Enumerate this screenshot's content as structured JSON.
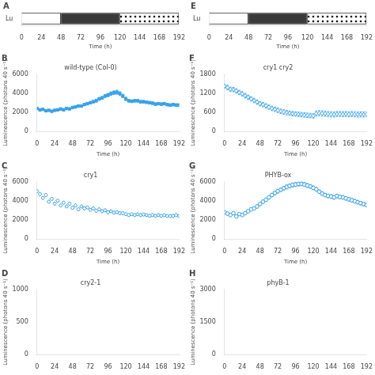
{
  "chart_data": [
    {
      "type": "bar",
      "title": "A",
      "orientation": "horizontal",
      "stacked": true,
      "grid": false,
      "categories": [
        "Lu"
      ],
      "xlabel": "Time (h)",
      "series": [
        {
          "values": [
            48
          ],
          "color": "#ffffff"
        },
        {
          "values": [
            72
          ],
          "color": "#3a3a3a"
        },
        {
          "values": [
            72
          ],
          "color": "#ffffff",
          "marker": "dots"
        }
      ],
      "xlim": [
        0,
        192
      ],
      "xticks": [
        0,
        24,
        48,
        72,
        96,
        120,
        144,
        168,
        192
      ]
    },
    {
      "type": "bar",
      "title": "E",
      "orientation": "horizontal",
      "stacked": true,
      "grid": false,
      "categories": [
        "Lu"
      ],
      "xlabel": "Time (h)",
      "series": [
        {
          "values": [
            48
          ],
          "color": "#ffffff"
        },
        {
          "values": [
            72
          ],
          "color": "#3a3a3a"
        },
        {
          "values": [
            72
          ],
          "color": "#ffffff",
          "marker": "dots"
        }
      ],
      "xlim": [
        0,
        192
      ],
      "xticks": [
        0,
        24,
        48,
        72,
        96,
        120,
        144,
        168,
        192
      ]
    },
    {
      "type": "scatter",
      "title": "B",
      "subtitle": "wild-type (Col-0)",
      "grid": false,
      "xlabel": "Time (h)",
      "ylabel": "Luminescence (photons 40 s⁻¹)",
      "x": [
        0,
        4,
        8,
        12,
        16,
        20,
        24,
        28,
        32,
        36,
        40,
        44,
        48,
        52,
        56,
        60,
        64,
        68,
        72,
        76,
        80,
        84,
        88,
        92,
        96,
        100,
        104,
        108,
        112,
        116,
        120,
        124,
        128,
        132,
        136,
        140,
        144,
        148,
        152,
        156,
        160,
        164,
        168,
        172,
        176,
        180,
        184,
        188,
        192
      ],
      "series": [
        {
          "marker": "square",
          "values": [
            2400,
            2250,
            2300,
            2150,
            2200,
            2100,
            2200,
            2250,
            2350,
            2250,
            2400,
            2350,
            2500,
            2550,
            2650,
            2650,
            2800,
            2900,
            3000,
            3100,
            3200,
            3400,
            3500,
            3700,
            3800,
            3950,
            4050,
            4100,
            3950,
            3700,
            3400,
            3200,
            3150,
            3200,
            3200,
            3100,
            3100,
            3050,
            3000,
            2950,
            2850,
            2900,
            2850,
            2900,
            2800,
            2750,
            2800,
            2750,
            2750
          ],
          "yerr": [
            80,
            80,
            80,
            80,
            80,
            80,
            80,
            80,
            80,
            80,
            80,
            80,
            80,
            80,
            80,
            80,
            100,
            120,
            120,
            130,
            140,
            150,
            160,
            170,
            180,
            190,
            200,
            220,
            200,
            190,
            180,
            150,
            140,
            140,
            140,
            140,
            140,
            130,
            130,
            130,
            130,
            130,
            130,
            130,
            130,
            130,
            130,
            130,
            130
          ]
        }
      ],
      "xlim": [
        0,
        192
      ],
      "xticks": [
        0,
        24,
        48,
        72,
        96,
        120,
        144,
        168,
        192
      ],
      "ylim": [
        0,
        6000
      ],
      "yticks": [
        0,
        2000,
        4000,
        6000
      ]
    },
    {
      "type": "scatter",
      "title": "F",
      "subtitle": "cry1 cry2",
      "grid": false,
      "xlabel": "Time (h)",
      "ylabel": "Luminescence (photons 40 s⁻¹)",
      "x": [
        0,
        4,
        8,
        12,
        16,
        20,
        24,
        28,
        32,
        36,
        40,
        44,
        48,
        52,
        56,
        60,
        64,
        68,
        72,
        76,
        80,
        84,
        88,
        92,
        96,
        100,
        104,
        108,
        112,
        116,
        120,
        124,
        128,
        132,
        136,
        140,
        144,
        148,
        152,
        156,
        160,
        164,
        168,
        172,
        176,
        180,
        184,
        188,
        192
      ],
      "series": [
        {
          "marker": "open diamond",
          "values": [
            1420,
            1380,
            1320,
            1310,
            1270,
            1220,
            1180,
            1120,
            1070,
            1020,
            970,
            920,
            870,
            840,
            800,
            760,
            720,
            690,
            660,
            630,
            610,
            590,
            570,
            555,
            545,
            535,
            525,
            515,
            505,
            495,
            485,
            560,
            570,
            565,
            555,
            545,
            535,
            530,
            545,
            545,
            540,
            545,
            535,
            545,
            535,
            530,
            535,
            530,
            535
          ],
          "yerr": [
            70,
            70,
            70,
            70,
            70,
            70,
            70,
            70,
            70,
            70,
            70,
            70,
            70,
            70,
            70,
            70,
            70,
            70,
            70,
            70,
            70,
            70,
            70,
            70,
            70,
            70,
            70,
            70,
            70,
            70,
            70,
            80,
            80,
            80,
            80,
            80,
            80,
            80,
            80,
            80,
            80,
            80,
            80,
            80,
            80,
            80,
            80,
            80,
            80
          ]
        }
      ],
      "xlim": [
        0,
        192
      ],
      "xticks": [
        0,
        24,
        48,
        72,
        96,
        120,
        144,
        168,
        192
      ],
      "ylim": [
        0,
        1800
      ],
      "yticks": [
        0,
        600,
        1200,
        1800
      ]
    },
    {
      "type": "scatter",
      "title": "C",
      "subtitle": "cry1",
      "grid": false,
      "xlabel": "Time (h)",
      "ylabel": "Luminescence (photons 40 s⁻¹)",
      "x": [
        0,
        4,
        8,
        12,
        16,
        20,
        24,
        28,
        32,
        36,
        40,
        44,
        48,
        52,
        56,
        60,
        64,
        68,
        72,
        76,
        80,
        84,
        88,
        92,
        96,
        100,
        104,
        108,
        112,
        116,
        120,
        124,
        128,
        132,
        136,
        140,
        144,
        148,
        152,
        156,
        160,
        164,
        168,
        172,
        176,
        180,
        184,
        188,
        192
      ],
      "series": [
        {
          "marker": "open diamond",
          "values": [
            5000,
            4700,
            4300,
            4600,
            3900,
            4200,
            3700,
            4000,
            3500,
            3800,
            3400,
            3700,
            3250,
            3500,
            3100,
            3400,
            3200,
            3300,
            3050,
            3200,
            2950,
            3100,
            2900,
            3000,
            2800,
            2900,
            2750,
            2800,
            2700,
            2700,
            2600,
            2500,
            2580,
            2500,
            2580,
            2500,
            2560,
            2490,
            2420,
            2490,
            2420,
            2490,
            2420,
            2490,
            2410,
            2400,
            2410,
            2490,
            2410
          ],
          "yerr": [
            130,
            130,
            130,
            130,
            130,
            130,
            130,
            130,
            130,
            130,
            130,
            130,
            130,
            130,
            130,
            130,
            130,
            130,
            130,
            130,
            130,
            130,
            130,
            130,
            130,
            130,
            130,
            130,
            130,
            130,
            130,
            130,
            130,
            130,
            130,
            130,
            130,
            130,
            130,
            130,
            130,
            130,
            130,
            130,
            130,
            130,
            130,
            130,
            130
          ]
        }
      ],
      "xlim": [
        0,
        192
      ],
      "xticks": [
        0,
        24,
        48,
        72,
        96,
        120,
        144,
        168,
        192
      ],
      "ylim": [
        0,
        6000
      ],
      "yticks": [
        0,
        2000,
        4000,
        6000
      ]
    },
    {
      "type": "scatter",
      "title": "G",
      "subtitle": "PHYB-ox",
      "grid": false,
      "xlabel": "Time (h)",
      "ylabel": "Luminescence (photons 40 s⁻¹)",
      "x": [
        0,
        4,
        8,
        12,
        16,
        20,
        24,
        28,
        32,
        36,
        40,
        44,
        48,
        52,
        56,
        60,
        64,
        68,
        72,
        76,
        80,
        84,
        88,
        92,
        96,
        100,
        104,
        108,
        112,
        116,
        120,
        124,
        128,
        132,
        136,
        140,
        144,
        148,
        152,
        156,
        160,
        164,
        168,
        172,
        176,
        180,
        184,
        188,
        192
      ],
      "series": [
        {
          "marker": "open circle",
          "values": [
            2800,
            2650,
            2500,
            2700,
            2350,
            2600,
            2500,
            2700,
            2900,
            3100,
            3200,
            3400,
            3650,
            3900,
            4100,
            4350,
            4600,
            4800,
            5000,
            5150,
            5300,
            5450,
            5550,
            5650,
            5700,
            5750,
            5780,
            5700,
            5600,
            5500,
            5350,
            5200,
            4950,
            4750,
            4600,
            4500,
            4450,
            4350,
            4500,
            4400,
            4350,
            4250,
            4150,
            4050,
            3950,
            3850,
            3750,
            3650,
            3550
          ],
          "yerr": [
            140,
            140,
            140,
            140,
            140,
            140,
            140,
            140,
            140,
            140,
            140,
            160,
            160,
            170,
            170,
            180,
            180,
            190,
            200,
            200,
            200,
            210,
            210,
            210,
            210,
            210,
            210,
            210,
            210,
            200,
            200,
            200,
            190,
            190,
            190,
            190,
            190,
            190,
            190,
            190,
            190,
            190,
            190,
            190,
            190,
            190,
            190,
            190,
            190
          ]
        }
      ],
      "xlim": [
        0,
        192
      ],
      "xticks": [
        0,
        24,
        48,
        72,
        96,
        120,
        144,
        168,
        192
      ],
      "ylim": [
        0,
        6000
      ],
      "yticks": [
        0,
        2000,
        4000,
        6000
      ]
    },
    {
      "type": "scatter",
      "title": "D",
      "subtitle": "cry2-1",
      "grid": false,
      "ylabel": "Luminescence (photons 40 s⁻¹)",
      "series": [],
      "xlim": [
        0,
        192
      ],
      "xticks": [
        0,
        24,
        48,
        72,
        96,
        120,
        144,
        168,
        192
      ],
      "ylim": [
        0,
        1000
      ],
      "yticks": [
        0,
        500,
        1000
      ]
    },
    {
      "type": "scatter",
      "title": "H",
      "subtitle": "phyB-1",
      "grid": false,
      "ylabel": "Luminescence (photons 40 s⁻¹)",
      "series": [],
      "xlim": [
        0,
        192
      ],
      "xticks": [
        0,
        24,
        48,
        72,
        96,
        120,
        144,
        168,
        192
      ],
      "ylim": [
        0,
        3000
      ],
      "yticks": [
        0,
        1500,
        3000
      ]
    }
  ]
}
